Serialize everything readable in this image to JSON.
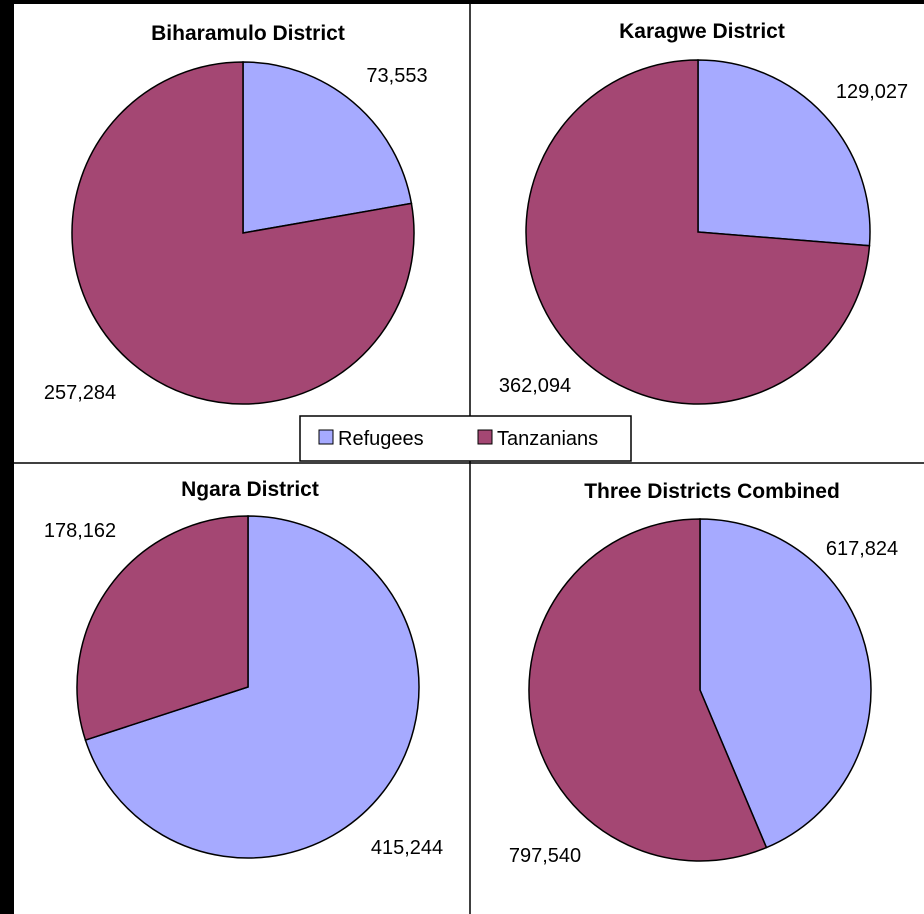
{
  "colors": {
    "refugees": "#A6AAFF",
    "tanzanians": "#A44773",
    "background": "#FFFFFF",
    "border": "#000000"
  },
  "legend": {
    "items": [
      {
        "label": "Refugees",
        "color": "#A6AAFF"
      },
      {
        "label": "Tanzanians",
        "color": "#A44773"
      }
    ]
  },
  "chart_data": [
    {
      "type": "pie",
      "title": "Biharamulo District",
      "categories": [
        "Refugees",
        "Tanzanians"
      ],
      "values": [
        73553,
        257284
      ],
      "labels": [
        "73,553",
        "257,284"
      ]
    },
    {
      "type": "pie",
      "title": "Karagwe District",
      "categories": [
        "Refugees",
        "Tanzanians"
      ],
      "values": [
        129027,
        362094
      ],
      "labels": [
        "129,027",
        "362,094"
      ]
    },
    {
      "type": "pie",
      "title": "Ngara District",
      "categories": [
        "Refugees",
        "Tanzanians"
      ],
      "values": [
        415244,
        178162
      ],
      "labels": [
        "415,244",
        "178,162"
      ]
    },
    {
      "type": "pie",
      "title": "Three Districts Combined",
      "categories": [
        "Refugees",
        "Tanzanians"
      ],
      "values": [
        617824,
        797540
      ],
      "labels": [
        "617,824",
        "797,540"
      ]
    }
  ]
}
